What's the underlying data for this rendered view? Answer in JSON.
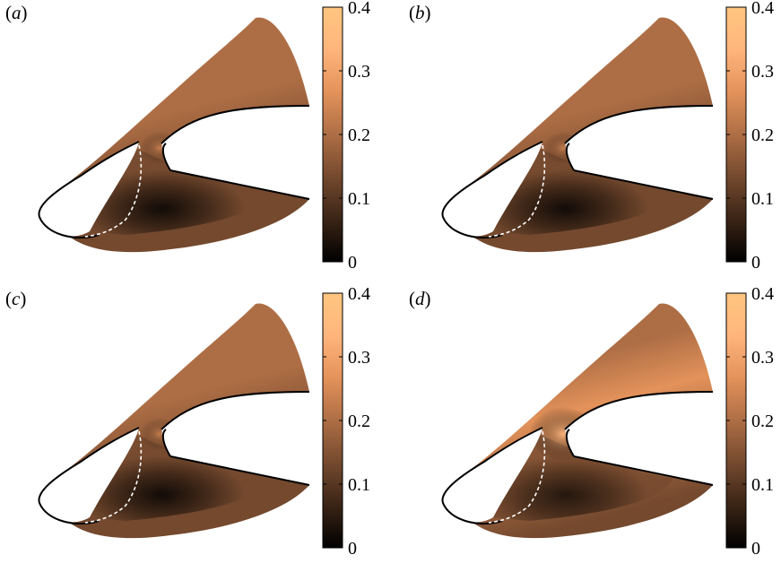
{
  "chart_data": [
    {
      "type": "heatmap",
      "panel_label": "a",
      "colorbar": {
        "ticks": [
          "0",
          "0.1",
          "0.2",
          "0.3",
          "0.4"
        ],
        "range": [
          0,
          0.4
        ]
      },
      "variant": "normal"
    },
    {
      "type": "heatmap",
      "panel_label": "b",
      "colorbar": {
        "ticks": [
          "0",
          "0.1",
          "0.2",
          "0.3",
          "0.4"
        ],
        "range": [
          0,
          0.4
        ]
      },
      "variant": "normal"
    },
    {
      "type": "heatmap",
      "panel_label": "c",
      "colorbar": {
        "ticks": [
          "0",
          "0.1",
          "0.2",
          "0.3",
          "0.4"
        ],
        "range": [
          0,
          0.4
        ]
      },
      "variant": "normal"
    },
    {
      "type": "heatmap",
      "panel_label": "d",
      "colorbar": {
        "ticks": [
          "0",
          "0.1",
          "0.2",
          "0.3",
          "0.4"
        ],
        "range": [
          0,
          0.4
        ]
      },
      "variant": "bright"
    }
  ],
  "colormap": {
    "name": "copper",
    "stops": [
      "#000000",
      "#3a2416",
      "#74492e",
      "#ae6e45",
      "#e3925a",
      "#ffb57c",
      "#ffc680"
    ]
  }
}
